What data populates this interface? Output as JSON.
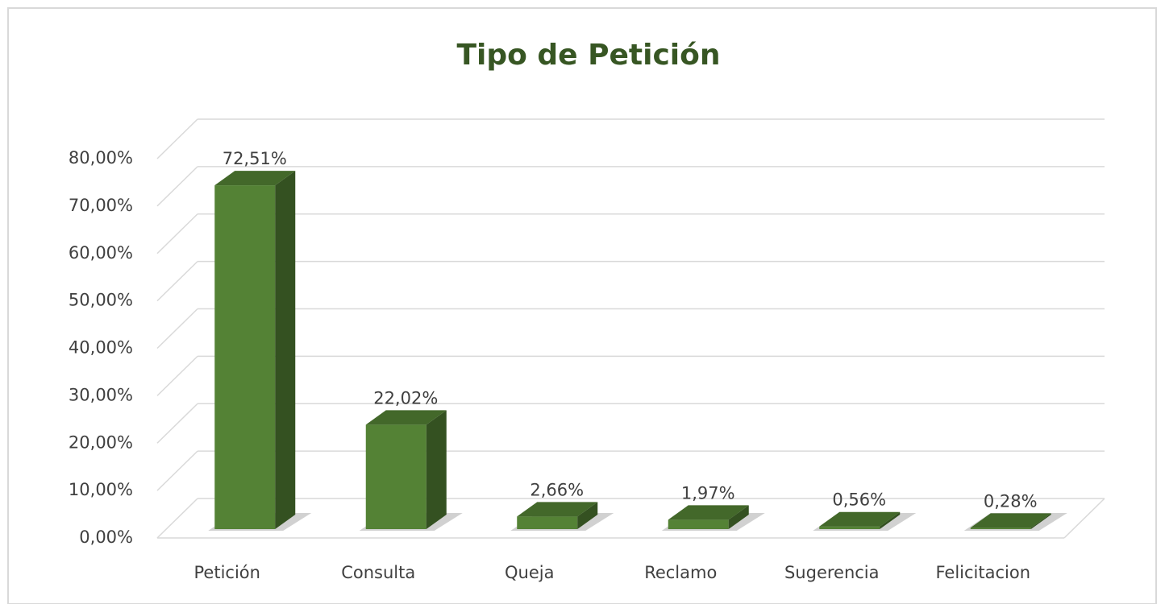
{
  "chart_data": {
    "type": "bar3d",
    "title": "Tipo de Petición",
    "categories": [
      "Petición",
      "Consulta",
      "Queja",
      "Reclamo",
      "Sugerencia",
      "Felicitacion"
    ],
    "values": [
      72.51,
      22.02,
      2.66,
      1.97,
      0.56,
      0.28
    ],
    "value_labels": [
      "72,51%",
      "22,02%",
      "2,66%",
      "1,97%",
      "0,56%",
      "0,28%"
    ],
    "color": "#548235",
    "ylim": [
      0,
      80
    ],
    "yticks": [
      {
        "value": 0,
        "label": "0,00%"
      },
      {
        "value": 10,
        "label": "10,00%"
      },
      {
        "value": 20,
        "label": "20,00%"
      },
      {
        "value": 30,
        "label": "30,00%"
      },
      {
        "value": 40,
        "label": "40,00%"
      },
      {
        "value": 50,
        "label": "50,00%"
      },
      {
        "value": 60,
        "label": "60,00%"
      },
      {
        "value": 70,
        "label": "70,00%"
      },
      {
        "value": 80,
        "label": "80,00%"
      }
    ],
    "grid": true
  }
}
